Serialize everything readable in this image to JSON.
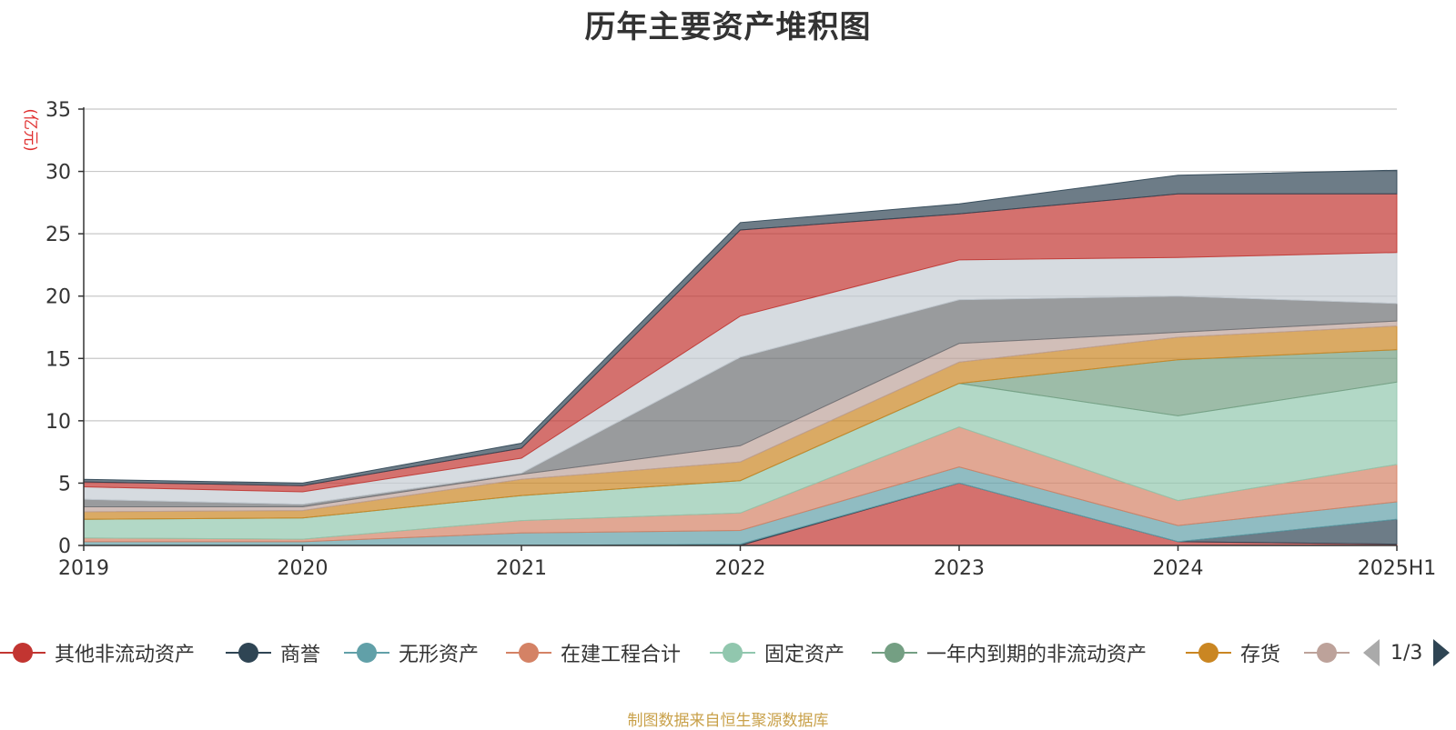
{
  "chart_data": {
    "type": "area",
    "stacked": true,
    "title": "历年主要资产堆积图",
    "ylabel": "(亿元)",
    "xlabel": "",
    "categories": [
      "2019",
      "2020",
      "2021",
      "2022",
      "2023",
      "2024",
      "2025H1"
    ],
    "ylim": [
      0,
      35
    ],
    "yticks": [
      0,
      5,
      10,
      15,
      20,
      25,
      30,
      35
    ],
    "grid": true,
    "legend_position": "bottom",
    "series": [
      {
        "name": "其他非流动资产",
        "color": "#c23531",
        "values": [
          0,
          0,
          0,
          0,
          5.0,
          0.3,
          0.1
        ]
      },
      {
        "name": "商誉",
        "color": "#2f4554",
        "values": [
          0,
          0,
          0,
          0.1,
          0,
          0,
          2.0
        ]
      },
      {
        "name": "无形资产",
        "color": "#61a0a8",
        "values": [
          0.3,
          0.3,
          1.0,
          1.1,
          1.3,
          1.3,
          1.4
        ]
      },
      {
        "name": "在建工程合计",
        "color": "#d48265",
        "values": [
          0.3,
          0.2,
          1.0,
          1.4,
          3.2,
          2.0,
          3.0
        ]
      },
      {
        "name": "固定资产",
        "color": "#91c7ae",
        "values": [
          1.5,
          1.7,
          2.0,
          2.6,
          3.5,
          6.8,
          6.6
        ]
      },
      {
        "name": "一年内到期的非流动资产",
        "color": "#749f83",
        "values": [
          0,
          0,
          0,
          0,
          0,
          4.5,
          2.6
        ]
      },
      {
        "name": "存货",
        "color": "#ca8622",
        "values": [
          0.6,
          0.6,
          1.3,
          1.5,
          1.7,
          1.8,
          1.9
        ]
      },
      {
        "name": "",
        "color": "#bda29a",
        "values": [
          0.4,
          0.3,
          0.4,
          1.3,
          1.5,
          0.4,
          0.4
        ]
      },
      {
        "name": "",
        "color": "#6e7074",
        "values": [
          0.6,
          0.2,
          0.1,
          7.1,
          3.5,
          2.9,
          1.4
        ]
      },
      {
        "name": "",
        "color": "#c4ccd3",
        "values": [
          1.0,
          1.0,
          1.2,
          3.3,
          3.2,
          3.1,
          4.1
        ]
      },
      {
        "name": "",
        "color": "#c23531",
        "values": [
          0.4,
          0.5,
          0.8,
          6.9,
          3.7,
          5.1,
          4.7
        ]
      },
      {
        "name": "",
        "color": "#2f4554",
        "values": [
          0.2,
          0.2,
          0.4,
          0.6,
          0.8,
          1.5,
          1.9
        ]
      }
    ]
  },
  "legend": {
    "items": [
      {
        "label": "其他非流动资产",
        "color": "#c23531"
      },
      {
        "label": "商誉",
        "color": "#2f4554"
      },
      {
        "label": "无形资产",
        "color": "#61a0a8"
      },
      {
        "label": "在建工程合计",
        "color": "#d48265"
      },
      {
        "label": "固定资产",
        "color": "#91c7ae"
      },
      {
        "label": "一年内到期的非流动资产",
        "color": "#749f83"
      },
      {
        "label": "存货",
        "color": "#ca8622"
      },
      {
        "label": "",
        "color": "#bda29a"
      }
    ],
    "page_indicator": "1/3"
  },
  "source_note": "制图数据来自恒生聚源数据库"
}
